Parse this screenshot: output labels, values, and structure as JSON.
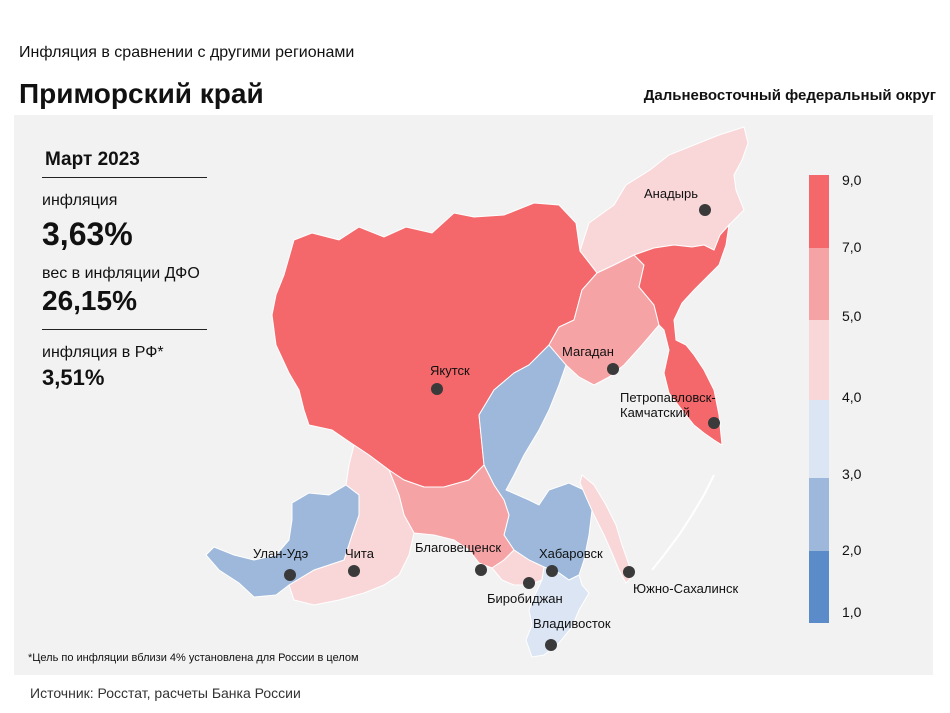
{
  "header": {
    "subtitle": "Инфляция в сравнении с другими регионами",
    "title": "Приморский край",
    "district": "Дальневосточный федеральный округ"
  },
  "info": {
    "date": "Март 2023",
    "inflation_label": "инфляция",
    "inflation_value": "3,63%",
    "weight_label": "вес в инфляции ДФО",
    "weight_value": "26,15%",
    "rf_label": "инфляция в РФ*",
    "rf_value": "3,51%"
  },
  "footnote": "*Цель по инфляции вблизи 4% установлена для России в целом",
  "source": "Источник: Росстат, расчеты Банка России",
  "colors": {
    "c_9": "#f4676a",
    "c_7": "#f6a3a6",
    "c_5": "#f9d7d9",
    "c_4": "#dbe5f3",
    "c_3": "#9db8da",
    "c_2": "#5b8bc9",
    "panel": "#f2f2f2",
    "white_region": "#ffffff"
  },
  "legend": {
    "ticks": [
      "9,0",
      "7,0",
      "5,0",
      "4,0",
      "3,0",
      "2,0",
      "1,0"
    ],
    "bins": [
      {
        "from": 7.0,
        "to": 9.0,
        "color": "#f4676a"
      },
      {
        "from": 5.0,
        "to": 7.0,
        "color": "#f6a3a6"
      },
      {
        "from": 4.0,
        "to": 5.0,
        "color": "#f9d7d9"
      },
      {
        "from": 3.0,
        "to": 4.0,
        "color": "#dbe5f3"
      },
      {
        "from": 2.0,
        "to": 3.0,
        "color": "#9db8da"
      },
      {
        "from": 1.0,
        "to": 2.0,
        "color": "#5b8bc9"
      }
    ]
  },
  "cities": {
    "anadyr": "Анадырь",
    "yakutsk": "Якутск",
    "magadan": "Магадан",
    "petropavlovsk_1": "Петропавловск-",
    "petropavlovsk_2": "Камчатский",
    "ulan_ude": "Улан-Удэ",
    "chita": "Чита",
    "blagoveshchensk": "Благовещенск",
    "khabarovsk": "Хабаровск",
    "birobidzhan": "Биробиджан",
    "yuzhno": "Южно-Сахалинск",
    "vladivostok": "Владивосток"
  }
}
